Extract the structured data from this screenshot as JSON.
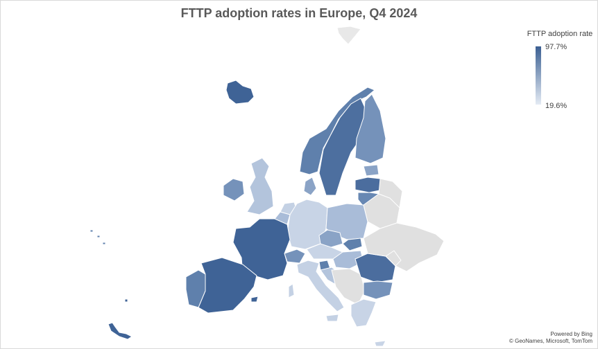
{
  "title": "FTTP adoption rates in Europe, Q4 2024",
  "legend": {
    "title": "FTTP adoption rate",
    "max_label": "97.7%",
    "min_label": "19.6%"
  },
  "colors": {
    "high": "#3b5f92",
    "low": "#e4ebf4",
    "no_data": "#e0e0e0",
    "border": "#ffffff"
  },
  "credits": {
    "line1": "Powered by Bing",
    "line2": "© GeoNames, Microsoft, TomTom"
  }
}
